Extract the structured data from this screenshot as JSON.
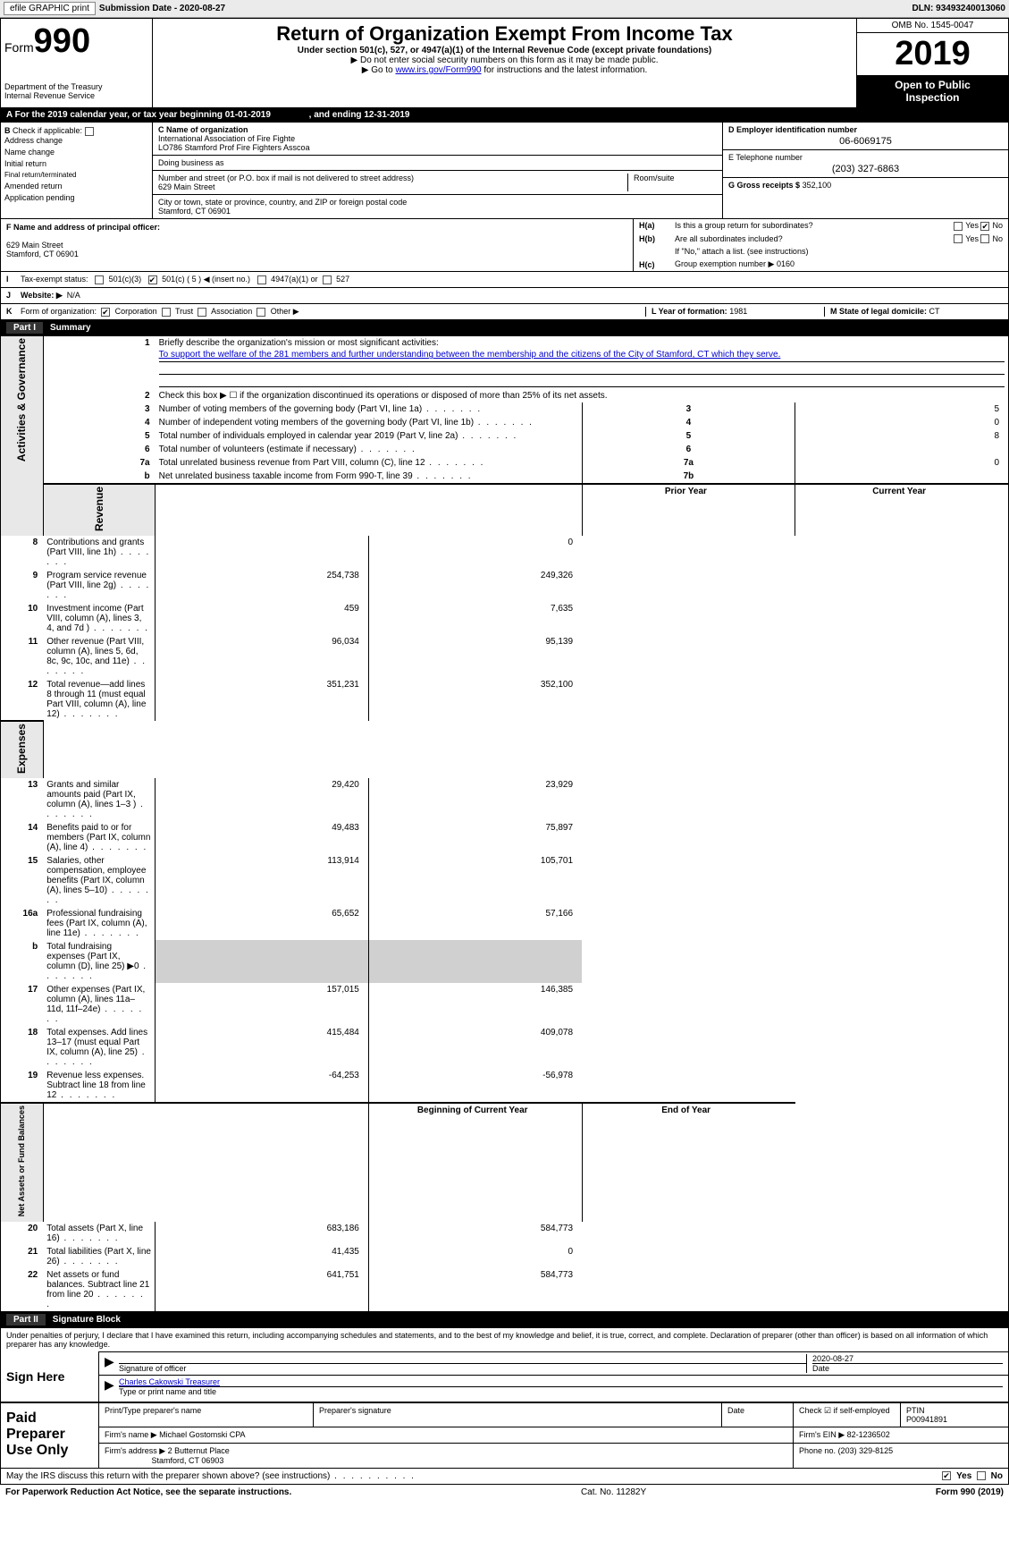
{
  "topbar": {
    "efile_label": "efile GRAPHIC print",
    "submission_label": "Submission Date - 2020-08-27",
    "dln": "DLN: 93493240013060"
  },
  "header": {
    "form_prefix": "Form",
    "form_number": "990",
    "title": "Return of Organization Exempt From Income Tax",
    "subtitle": "Under section 501(c), 527, or 4947(a)(1) of the Internal Revenue Code (except private foundations)",
    "note1": "▶ Do not enter social security numbers on this form as it may be made public.",
    "note2_pre": "▶ Go to ",
    "note2_link": "www.irs.gov/Form990",
    "note2_post": " for instructions and the latest information.",
    "dept": "Department of the Treasury\nInternal Revenue Service",
    "omb": "OMB No. 1545-0047",
    "year": "2019",
    "open": "Open to Public",
    "inspection": "Inspection"
  },
  "row_a": {
    "text": "A   For the 2019 calendar year, or tax year beginning 01-01-2019",
    "mid": ", and ending 12-31-2019"
  },
  "section_b": {
    "label_b": "B",
    "check_if": "Check if applicable:",
    "items": [
      "Address change",
      "Name change",
      "Initial return",
      "Final return/terminated",
      "Amended return",
      "Application pending"
    ]
  },
  "section_c": {
    "label": "C Name of organization",
    "name1": "International Association of Fire Fighte",
    "name2": "LO786 Stamford Prof Fire Fighters Asscoa",
    "dba_label": "Doing business as",
    "dba": "",
    "addr_label": "Number and street (or P.O. box if mail is not delivered to street address)",
    "addr": "629 Main Street",
    "room_label": "Room/suite",
    "city_label": "City or town, state or province, country, and ZIP or foreign postal code",
    "city": "Stamford, CT  06901"
  },
  "section_d": {
    "d_label": "D Employer identification number",
    "ein": "06-6069175",
    "e_label": "E Telephone number",
    "phone": "(203) 327-6863",
    "g_label": "G Gross receipts $",
    "g_val": "352,100"
  },
  "section_f": {
    "label": "F Name and address of principal officer:",
    "line1": "",
    "line2": "629 Main Street",
    "line3": "Stamford, CT  06901"
  },
  "section_h": {
    "ha_lbl": "H(a)",
    "ha_txt": "Is this a group return for subordinates?",
    "yes": "Yes",
    "no": "No",
    "hb_lbl": "H(b)",
    "hb_txt": "Are all subordinates included?",
    "hb_note": "If \"No,\" attach a list. (see instructions)",
    "hc_lbl": "H(c)",
    "hc_txt": "Group exemption number ▶",
    "hc_val": "0160"
  },
  "row_i": {
    "lead": "I",
    "label": "Tax-exempt status:",
    "opts": [
      "501(c)(3)",
      "501(c) ( 5 ) ◀ (insert no.)",
      "4947(a)(1) or",
      "527"
    ]
  },
  "row_j": {
    "lead": "J",
    "label": "Website: ▶",
    "val": "N/A"
  },
  "row_k": {
    "lead": "K",
    "label": "Form of organization:",
    "opts": [
      "Corporation",
      "Trust",
      "Association",
      "Other ▶"
    ]
  },
  "row_l": {
    "label": "L Year of formation:",
    "val": "1981"
  },
  "row_m": {
    "label": "M State of legal domicile:",
    "val": "CT"
  },
  "parts": {
    "p1_label": "Part I",
    "p1_title": "Summary",
    "p2_label": "Part II",
    "p2_title": "Signature Block"
  },
  "summary": {
    "side_labels": [
      "Activities & Governance",
      "Revenue",
      "Expenses",
      "Net Assets or Fund Balances"
    ],
    "line1_label": "Briefly describe the organization's mission or most significant activities:",
    "line1_val": "To support the welfare of the 281 members and further understanding between the membership and the citizens of the City of Stamford, CT which they serve.",
    "line2": "Check this box ▶ ☐  if the organization discontinued its operations or disposed of more than 25% of its net assets.",
    "prior_year": "Prior Year",
    "current_year": "Current Year",
    "begin_year": "Beginning of Current Year",
    "end_year": "End of Year",
    "rows_gov": [
      {
        "n": "3",
        "desc": "Number of voting members of the governing body (Part VI, line 1a)",
        "box": "3",
        "val": "5"
      },
      {
        "n": "4",
        "desc": "Number of independent voting members of the governing body (Part VI, line 1b)",
        "box": "4",
        "val": "0"
      },
      {
        "n": "5",
        "desc": "Total number of individuals employed in calendar year 2019 (Part V, line 2a)",
        "box": "5",
        "val": "8"
      },
      {
        "n": "6",
        "desc": "Total number of volunteers (estimate if necessary)",
        "box": "6",
        "val": ""
      },
      {
        "n": "7a",
        "desc": "Total unrelated business revenue from Part VIII, column (C), line 12",
        "box": "7a",
        "val": "0"
      },
      {
        "n": "b",
        "desc": "Net unrelated business taxable income from Form 990-T, line 39",
        "box": "7b",
        "val": ""
      }
    ],
    "rows_rev": [
      {
        "n": "8",
        "desc": "Contributions and grants (Part VIII, line 1h)",
        "py": "",
        "cy": "0"
      },
      {
        "n": "9",
        "desc": "Program service revenue (Part VIII, line 2g)",
        "py": "254,738",
        "cy": "249,326"
      },
      {
        "n": "10",
        "desc": "Investment income (Part VIII, column (A), lines 3, 4, and 7d )",
        "py": "459",
        "cy": "7,635"
      },
      {
        "n": "11",
        "desc": "Other revenue (Part VIII, column (A), lines 5, 6d, 8c, 9c, 10c, and 11e)",
        "py": "96,034",
        "cy": "95,139"
      },
      {
        "n": "12",
        "desc": "Total revenue—add lines 8 through 11 (must equal Part VIII, column (A), line 12)",
        "py": "351,231",
        "cy": "352,100"
      }
    ],
    "rows_exp": [
      {
        "n": "13",
        "desc": "Grants and similar amounts paid (Part IX, column (A), lines 1–3 )",
        "py": "29,420",
        "cy": "23,929"
      },
      {
        "n": "14",
        "desc": "Benefits paid to or for members (Part IX, column (A), line 4)",
        "py": "49,483",
        "cy": "75,897"
      },
      {
        "n": "15",
        "desc": "Salaries, other compensation, employee benefits (Part IX, column (A), lines 5–10)",
        "py": "113,914",
        "cy": "105,701"
      },
      {
        "n": "16a",
        "desc": "Professional fundraising fees (Part IX, column (A), line 11e)",
        "py": "65,652",
        "cy": "57,166"
      },
      {
        "n": "b",
        "desc": "Total fundraising expenses (Part IX, column (D), line 25) ▶0",
        "py": "",
        "cy": "",
        "shade": true
      },
      {
        "n": "17",
        "desc": "Other expenses (Part IX, column (A), lines 11a–11d, 11f–24e)",
        "py": "157,015",
        "cy": "146,385"
      },
      {
        "n": "18",
        "desc": "Total expenses. Add lines 13–17 (must equal Part IX, column (A), line 25)",
        "py": "415,484",
        "cy": "409,078"
      },
      {
        "n": "19",
        "desc": "Revenue less expenses. Subtract line 18 from line 12",
        "py": "-64,253",
        "cy": "-56,978"
      }
    ],
    "rows_net": [
      {
        "n": "20",
        "desc": "Total assets (Part X, line 16)",
        "py": "683,186",
        "cy": "584,773"
      },
      {
        "n": "21",
        "desc": "Total liabilities (Part X, line 26)",
        "py": "41,435",
        "cy": "0"
      },
      {
        "n": "22",
        "desc": "Net assets or fund balances. Subtract line 21 from line 20",
        "py": "641,751",
        "cy": "584,773"
      }
    ]
  },
  "sig": {
    "perjury": "Under penalties of perjury, I declare that I have examined this return, including accompanying schedules and statements, and to the best of my knowledge and belief, it is true, correct, and complete. Declaration of preparer (other than officer) is based on all information of which preparer has any knowledge.",
    "sign_here": "Sign Here",
    "sig_officer": "Signature of officer",
    "date_label": "Date",
    "date_val": "2020-08-27",
    "name_val": "Charles Cakowski  Treasurer",
    "name_label": "Type or print name and title"
  },
  "prep": {
    "title": "Paid Preparer Use Only",
    "c1": "Print/Type preparer's name",
    "c2": "Preparer's signature",
    "c3": "Date",
    "c4a": "Check ☑ if self-employed",
    "c4b": "PTIN",
    "ptin": "P00941891",
    "firm_name_lbl": "Firm's name     ▶",
    "firm_name": "Michael Gostomski CPA",
    "firm_ein_lbl": "Firm's EIN ▶",
    "firm_ein": "82-1236502",
    "firm_addr_lbl": "Firm's address ▶",
    "firm_addr1": "2 Butternut Place",
    "firm_addr2": "Stamford, CT  06903",
    "phone_lbl": "Phone no.",
    "phone": "(203) 329-8125"
  },
  "footer": {
    "discuss": "May the IRS discuss this return with the preparer shown above? (see instructions)",
    "yes": "Yes",
    "no": "No",
    "pra": "For Paperwork Reduction Act Notice, see the separate instructions.",
    "cat": "Cat. No. 11282Y",
    "form": "Form 990 (2019)"
  }
}
